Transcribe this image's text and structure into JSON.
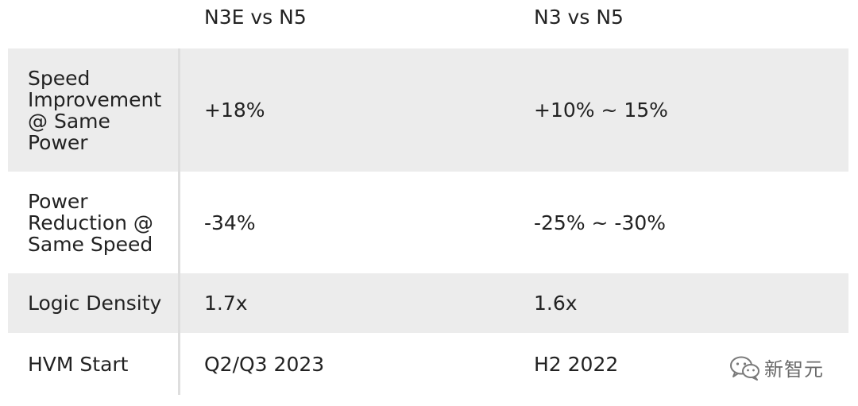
{
  "table": {
    "header": [
      "",
      "N3E vs N5",
      "N3 vs N5"
    ],
    "rows": [
      {
        "label": "Speed\nImprovement\n@ Same\nPower",
        "n3e": "+18%",
        "n3": "+10% ~ 15%"
      },
      {
        "label": "Power\nReduction @\nSame Speed",
        "n3e": "-34%",
        "n3": "-25% ~ -30%"
      },
      {
        "label": "Logic Density",
        "n3e": "1.7x",
        "n3": "1.6x"
      },
      {
        "label": "HVM Start",
        "n3e": "Q2/Q3 2023",
        "n3": "H2 2022"
      }
    ]
  },
  "watermark": {
    "icon": "wechat-icon",
    "text": "新智元"
  },
  "colors": {
    "shaded_row": "#ececec",
    "text": "#222222",
    "divider": "#dedede"
  }
}
